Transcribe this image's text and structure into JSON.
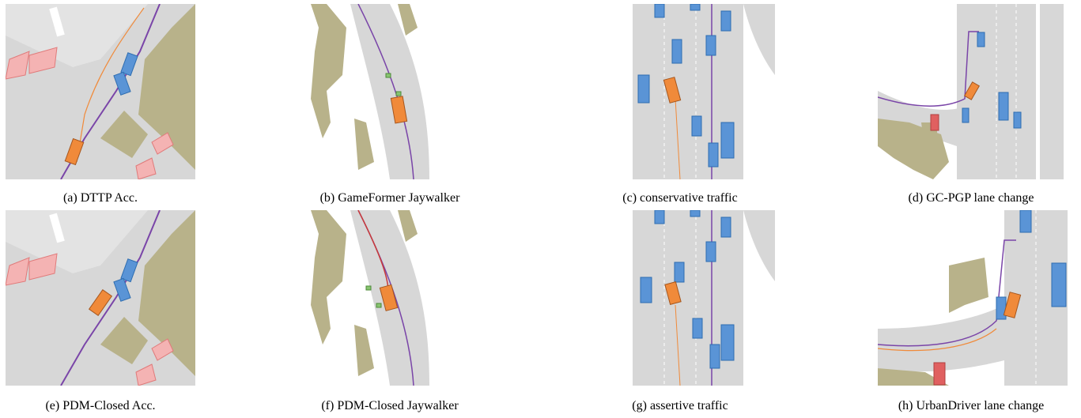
{
  "figure": {
    "captions": {
      "a": "(a) DTTP Acc.",
      "b": "(b) GameFormer Jaywalker",
      "c": "(c) conservative traffic",
      "d": "(d) GC-PGP lane change",
      "e": "(e) PDM-Closed Acc.",
      "f": "(f) PDM-Closed Jaywalker",
      "g": "(g) assertive traffic",
      "h": "(h) UrbanDriver lane change"
    },
    "colors": {
      "road": "#d7d7d7",
      "road_marking": "#ffffff",
      "offroad_area": "#b8b28a",
      "ego_vehicle": "#f08a3a",
      "other_vehicle": "#5a94d6",
      "crosswalk": "#f08a8a",
      "pedestrian": "#88c470",
      "route_line": "#7a45a8",
      "ego_trajectory": "#f08a3a",
      "alt_trajectory": "#c83a3a"
    }
  }
}
